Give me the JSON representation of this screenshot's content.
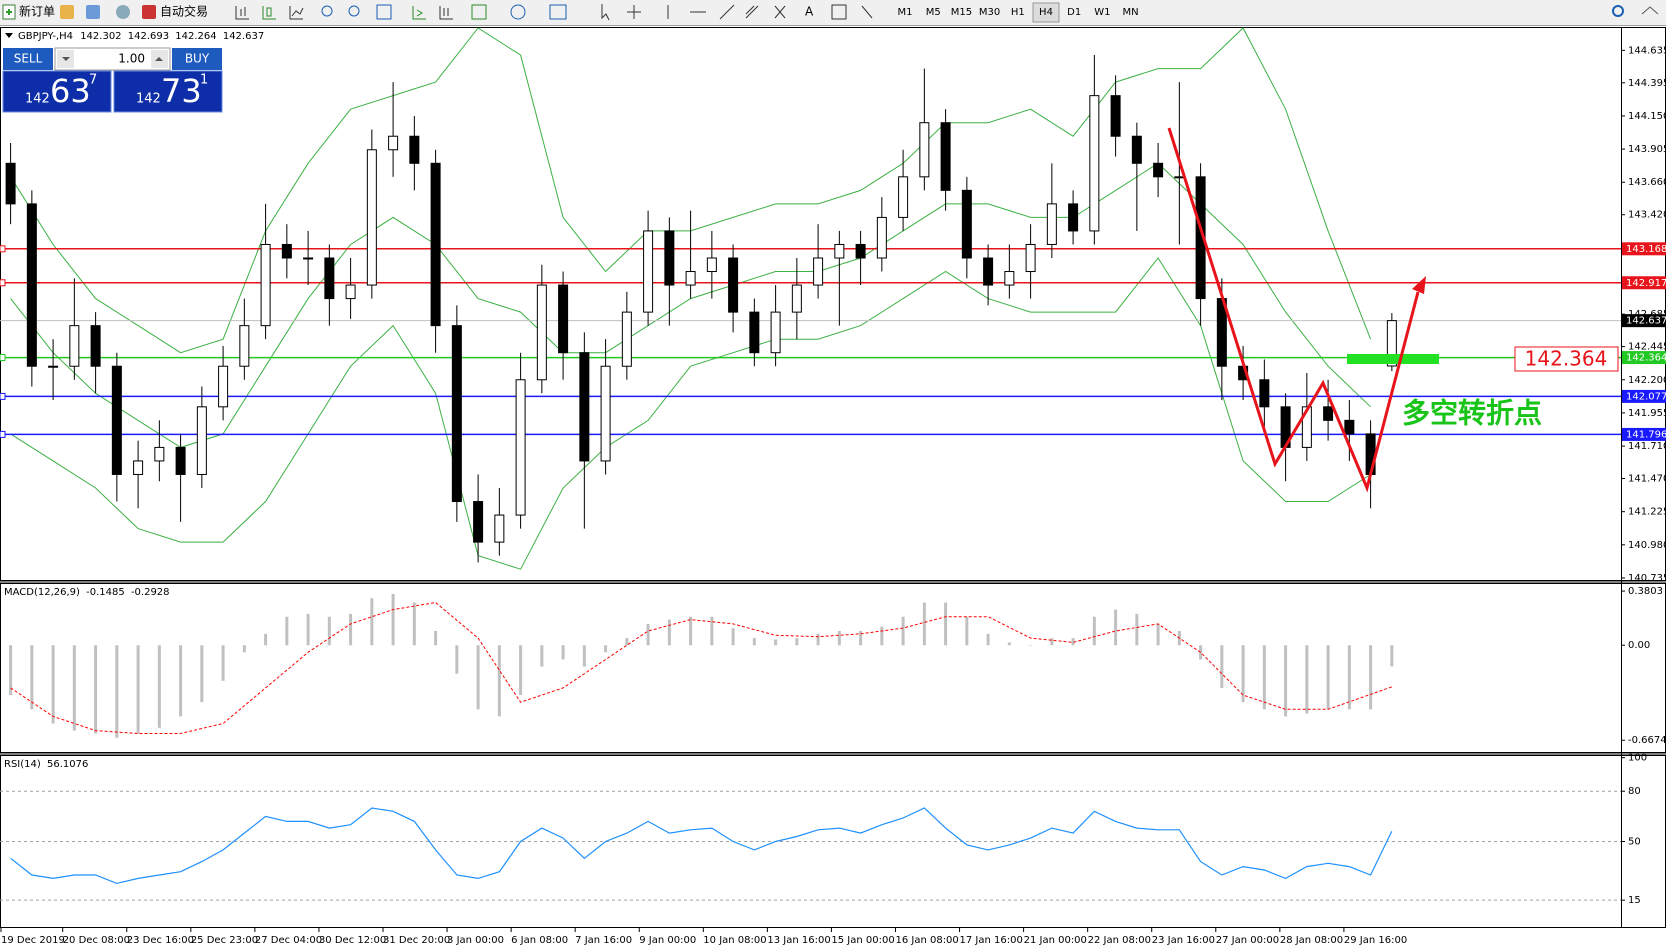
{
  "toolbar": {
    "new_order": "新订单",
    "auto_trade": "自动交易",
    "text_tool": "A",
    "timeframes": [
      "M1",
      "M5",
      "M15",
      "M30",
      "H1",
      "H4",
      "D1",
      "W1",
      "MN"
    ],
    "active_timeframe": "H4"
  },
  "trade_panel": {
    "sell": "SELL",
    "buy": "BUY",
    "lots": "1.00",
    "bid": {
      "big": "142",
      "main": "63",
      "sup": "7"
    },
    "ask": {
      "big": "142",
      "main": "73",
      "sup": "1"
    }
  },
  "chart_data": [
    {
      "type": "candlestick",
      "symbol": "GBPJPY-,H4",
      "candles": [
        [
          143.8,
          143.95,
          143.35,
          143.5
        ],
        [
          143.5,
          143.6,
          142.15,
          142.3
        ],
        [
          142.3,
          142.5,
          142.05,
          142.3
        ],
        [
          142.3,
          142.95,
          142.2,
          142.6
        ],
        [
          142.6,
          142.7,
          142.1,
          142.3
        ],
        [
          142.3,
          142.4,
          141.3,
          141.5
        ],
        [
          141.5,
          141.75,
          141.25,
          141.6
        ],
        [
          141.6,
          141.9,
          141.45,
          141.7
        ],
        [
          141.7,
          141.8,
          141.15,
          141.5
        ],
        [
          141.5,
          142.15,
          141.4,
          142.0
        ],
        [
          142.0,
          142.45,
          141.9,
          142.3
        ],
        [
          142.3,
          142.8,
          142.2,
          142.6
        ],
        [
          142.6,
          143.5,
          142.5,
          143.2
        ],
        [
          143.2,
          143.35,
          142.95,
          143.1
        ],
        [
          143.1,
          143.3,
          142.9,
          143.1
        ],
        [
          143.1,
          143.2,
          142.6,
          142.8
        ],
        [
          142.8,
          143.1,
          142.65,
          142.9
        ],
        [
          142.9,
          144.05,
          142.8,
          143.9
        ],
        [
          143.9,
          144.4,
          143.7,
          144.0
        ],
        [
          144.0,
          144.15,
          143.6,
          143.8
        ],
        [
          143.8,
          143.9,
          142.4,
          142.6
        ],
        [
          142.6,
          142.75,
          141.15,
          141.3
        ],
        [
          141.3,
          141.5,
          140.85,
          141.0
        ],
        [
          141.0,
          141.4,
          140.9,
          141.2
        ],
        [
          141.2,
          142.4,
          141.1,
          142.2
        ],
        [
          142.2,
          143.05,
          142.1,
          142.9
        ],
        [
          142.9,
          143.0,
          142.2,
          142.4
        ],
        [
          142.4,
          142.55,
          141.1,
          141.6
        ],
        [
          141.6,
          142.5,
          141.5,
          142.3
        ],
        [
          142.3,
          142.85,
          142.2,
          142.7
        ],
        [
          142.7,
          143.45,
          142.6,
          143.3
        ],
        [
          143.3,
          143.4,
          142.6,
          142.9
        ],
        [
          142.9,
          143.45,
          142.8,
          143.0
        ],
        [
          143.0,
          143.3,
          142.8,
          143.1
        ],
        [
          143.1,
          143.2,
          142.55,
          142.7
        ],
        [
          142.7,
          142.8,
          142.3,
          142.4
        ],
        [
          142.4,
          142.9,
          142.3,
          142.7
        ],
        [
          142.7,
          143.1,
          142.5,
          142.9
        ],
        [
          142.9,
          143.35,
          142.8,
          143.1
        ],
        [
          143.1,
          143.3,
          142.6,
          143.2
        ],
        [
          143.2,
          143.3,
          142.9,
          143.1
        ],
        [
          143.1,
          143.55,
          143.0,
          143.4
        ],
        [
          143.4,
          143.9,
          143.3,
          143.7
        ],
        [
          143.7,
          144.5,
          143.6,
          144.1
        ],
        [
          144.1,
          144.2,
          143.45,
          143.6
        ],
        [
          143.6,
          143.7,
          142.95,
          143.1
        ],
        [
          143.1,
          143.2,
          142.75,
          142.9
        ],
        [
          142.9,
          143.2,
          142.8,
          143.0
        ],
        [
          143.0,
          143.35,
          142.8,
          143.2
        ],
        [
          143.2,
          143.8,
          143.1,
          143.5
        ],
        [
          143.5,
          143.6,
          143.2,
          143.3
        ],
        [
          143.3,
          144.6,
          143.2,
          144.3
        ],
        [
          144.3,
          144.45,
          143.85,
          144.0
        ],
        [
          144.0,
          144.1,
          143.3,
          143.8
        ],
        [
          143.8,
          143.95,
          143.55,
          143.7
        ],
        [
          143.7,
          144.4,
          143.2,
          143.7
        ],
        [
          143.7,
          143.8,
          142.6,
          142.8
        ],
        [
          142.8,
          142.95,
          142.05,
          142.3
        ],
        [
          142.3,
          142.45,
          142.05,
          142.2
        ],
        [
          142.2,
          142.35,
          141.85,
          142.0
        ],
        [
          142.0,
          142.1,
          141.45,
          141.7
        ],
        [
          141.7,
          142.25,
          141.6,
          142.0
        ],
        [
          142.0,
          142.2,
          141.75,
          141.9
        ],
        [
          141.9,
          142.05,
          141.6,
          141.8
        ],
        [
          141.8,
          141.9,
          141.25,
          141.5
        ],
        [
          142.302,
          142.693,
          142.264,
          142.637
        ]
      ],
      "up_color": "#ffffff",
      "down_color": "#000000",
      "bands": {
        "color": "#3cb043",
        "x": [
          0,
          2,
          4,
          6,
          8,
          10,
          12,
          14,
          16,
          18,
          20,
          22,
          24,
          26,
          28,
          30,
          32,
          34,
          36,
          38,
          40,
          42,
          44,
          46,
          48,
          50,
          52,
          54,
          56,
          58,
          60,
          62,
          64
        ],
        "upper": [
          143.7,
          143.2,
          142.8,
          142.6,
          142.4,
          142.5,
          143.3,
          143.8,
          144.2,
          144.3,
          144.4,
          144.8,
          144.6,
          143.4,
          143.0,
          143.3,
          143.3,
          143.4,
          143.5,
          143.5,
          143.6,
          143.8,
          144.1,
          144.1,
          144.2,
          144.0,
          144.4,
          144.5,
          144.5,
          144.8,
          144.2,
          143.3,
          142.5
        ],
        "middle": [
          142.8,
          142.4,
          142.1,
          141.9,
          141.7,
          141.8,
          142.3,
          142.8,
          143.2,
          143.4,
          143.2,
          142.8,
          142.7,
          142.4,
          142.4,
          142.6,
          142.8,
          142.9,
          143.0,
          143.0,
          143.1,
          143.3,
          143.5,
          143.5,
          143.4,
          143.4,
          143.6,
          143.8,
          143.5,
          143.2,
          142.7,
          142.3,
          142.0
        ],
        "lower": [
          141.8,
          141.6,
          141.4,
          141.1,
          141.0,
          141.0,
          141.3,
          141.8,
          142.3,
          142.6,
          142.1,
          140.9,
          140.8,
          141.4,
          141.7,
          141.9,
          142.3,
          142.4,
          142.5,
          142.5,
          142.6,
          142.8,
          143.0,
          142.8,
          142.7,
          142.7,
          142.7,
          143.1,
          142.6,
          141.6,
          141.3,
          141.3,
          141.5
        ]
      },
      "ylim": [
        140.72,
        144.8
      ],
      "yticks": [
        144.635,
        144.395,
        {
          "value": 144.15,
          "label": "144.150"
        },
        143.905,
        {
          "value": 143.66,
          "label": "143.660"
        },
        {
          "value": 143.42,
          "label": "143.420"
        },
        142.685,
        142.445,
        {
          "value": 142.2,
          "label": "142.200"
        },
        141.955,
        {
          "value": 141.71,
          "label": "141.710"
        },
        {
          "value": 141.47,
          "label": "141.470"
        },
        141.225,
        {
          "value": 140.98,
          "label": "140.980"
        },
        140.735
      ],
      "levels": [
        {
          "value": 143.168,
          "color": "#e8141b"
        },
        {
          "value": 142.917,
          "color": "#e8141b"
        },
        {
          "value": 142.364,
          "color": "#22c922"
        },
        {
          "value": 142.077,
          "color": "#1a1aff"
        },
        {
          "value": 141.796,
          "color": "#1a1aff"
        }
      ],
      "annotation": "多空转折点",
      "time_labels": [
        "19 Dec 2019",
        "20 Dec 08:00",
        "23 Dec 16:00",
        "25 Dec 23:00",
        "27 Dec 04:00",
        "30 Dec 12:00",
        "31 Dec 20:00",
        "3 Jan 00:00",
        "6 Jan 08:00",
        "7 Jan 16:00",
        "9 Jan 00:00",
        "10 Jan 08:00",
        "13 Jan 16:00",
        "15 Jan 00:00",
        "16 Jan 08:00",
        "17 Jan 16:00",
        "21 Jan 00:00",
        "22 Jan 08:00",
        "23 Jan 16:00",
        "27 Jan 00:00",
        "28 Jan 08:00",
        "29 Jan 16:00"
      ]
    },
    {
      "type": "macd",
      "title": "MACD(12,26,9)",
      "histogram": [
        -0.35,
        -0.45,
        -0.55,
        -0.6,
        -0.62,
        -0.65,
        -0.62,
        -0.58,
        -0.5,
        -0.4,
        -0.25,
        -0.05,
        0.08,
        0.2,
        0.22,
        0.2,
        0.22,
        0.33,
        0.36,
        0.3,
        0.1,
        -0.2,
        -0.45,
        -0.5,
        -0.35,
        -0.15,
        -0.1,
        -0.15,
        -0.05,
        0.05,
        0.15,
        0.18,
        0.2,
        0.2,
        0.12,
        0.05,
        0.04,
        0.05,
        0.08,
        0.1,
        0.1,
        0.13,
        0.2,
        0.3,
        0.3,
        0.2,
        0.08,
        0.02,
        0.0,
        0.05,
        0.05,
        0.2,
        0.25,
        0.22,
        0.15,
        0.1,
        -0.1,
        -0.3,
        -0.4,
        -0.45,
        -0.5,
        -0.48,
        -0.45,
        -0.45,
        -0.45,
        -0.1485
      ],
      "hist_color": "#c0c0c0",
      "signal": {
        "color": "#ff0000",
        "x": [
          0,
          2,
          4,
          6,
          8,
          10,
          12,
          14,
          16,
          18,
          20,
          22,
          24,
          26,
          28,
          30,
          32,
          34,
          36,
          38,
          40,
          42,
          44,
          46,
          48,
          50,
          52,
          54,
          56,
          58,
          60,
          62,
          65
        ],
        "values": [
          -0.3,
          -0.5,
          -0.6,
          -0.62,
          -0.62,
          -0.55,
          -0.3,
          -0.05,
          0.15,
          0.25,
          0.3,
          0.05,
          -0.4,
          -0.3,
          -0.1,
          0.1,
          0.18,
          0.15,
          0.07,
          0.06,
          0.08,
          0.12,
          0.2,
          0.2,
          0.05,
          0.02,
          0.1,
          0.15,
          -0.05,
          -0.35,
          -0.45,
          -0.45,
          -0.2928
        ]
      },
      "ylim": [
        -0.75,
        0.43
      ],
      "yticks": [
        0.3803,
        {
          "value": 0,
          "label": "0.00"
        },
        -0.6674
      ]
    },
    {
      "type": "line",
      "title": "RSI(14)",
      "color": "#1e90ff",
      "values": [
        40,
        30,
        28,
        30,
        30,
        25,
        28,
        30,
        32,
        38,
        45,
        55,
        65,
        62,
        62,
        58,
        60,
        70,
        68,
        62,
        45,
        30,
        28,
        32,
        50,
        58,
        52,
        40,
        50,
        55,
        62,
        55,
        57,
        58,
        50,
        45,
        50,
        53,
        57,
        58,
        55,
        60,
        64,
        70,
        58,
        48,
        45,
        48,
        52,
        58,
        55,
        68,
        62,
        58,
        57,
        57,
        38,
        30,
        35,
        33,
        28,
        35,
        37,
        35,
        30,
        56.1076
      ],
      "ylim": [
        -1,
        101
      ],
      "yticks": [
        100,
        80,
        50,
        15
      ],
      "levels": [
        80,
        50,
        15
      ]
    }
  ]
}
